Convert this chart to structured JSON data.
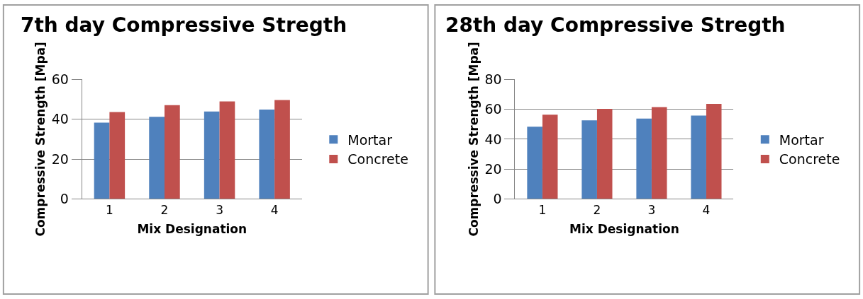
{
  "chart_data": [
    {
      "type": "bar",
      "title": "7th day Compressive Stregth",
      "xlabel": "Mix Designation",
      "ylabel": "Compressive Strength [Mpa]",
      "categories": [
        "1",
        "2",
        "3",
        "4"
      ],
      "series": [
        {
          "name": "Mortar",
          "color": "#4f81bd",
          "values": [
            38.3,
            41.2,
            43.9,
            44.9
          ]
        },
        {
          "name": "Concrete",
          "color": "#c0504d",
          "values": [
            43.6,
            47.1,
            49.0,
            49.7
          ]
        }
      ],
      "ylim": [
        0,
        60
      ],
      "yticks": [
        0,
        20,
        40,
        60
      ],
      "grid": "y",
      "legend": "right"
    },
    {
      "type": "bar",
      "title": "28th day Compressive Stregth",
      "xlabel": "Mix Designation",
      "ylabel": "Compressive Strength [Mpa]",
      "categories": [
        "1",
        "2",
        "3",
        "4"
      ],
      "series": [
        {
          "name": "Mortar",
          "color": "#4f81bd",
          "values": [
            48.3,
            52.6,
            53.8,
            55.8
          ]
        },
        {
          "name": "Concrete",
          "color": "#c0504d",
          "values": [
            56.4,
            60.3,
            61.5,
            63.6
          ]
        }
      ],
      "ylim": [
        0,
        80
      ],
      "yticks": [
        0,
        20,
        40,
        60,
        80
      ],
      "grid": "y",
      "legend": "right"
    }
  ]
}
